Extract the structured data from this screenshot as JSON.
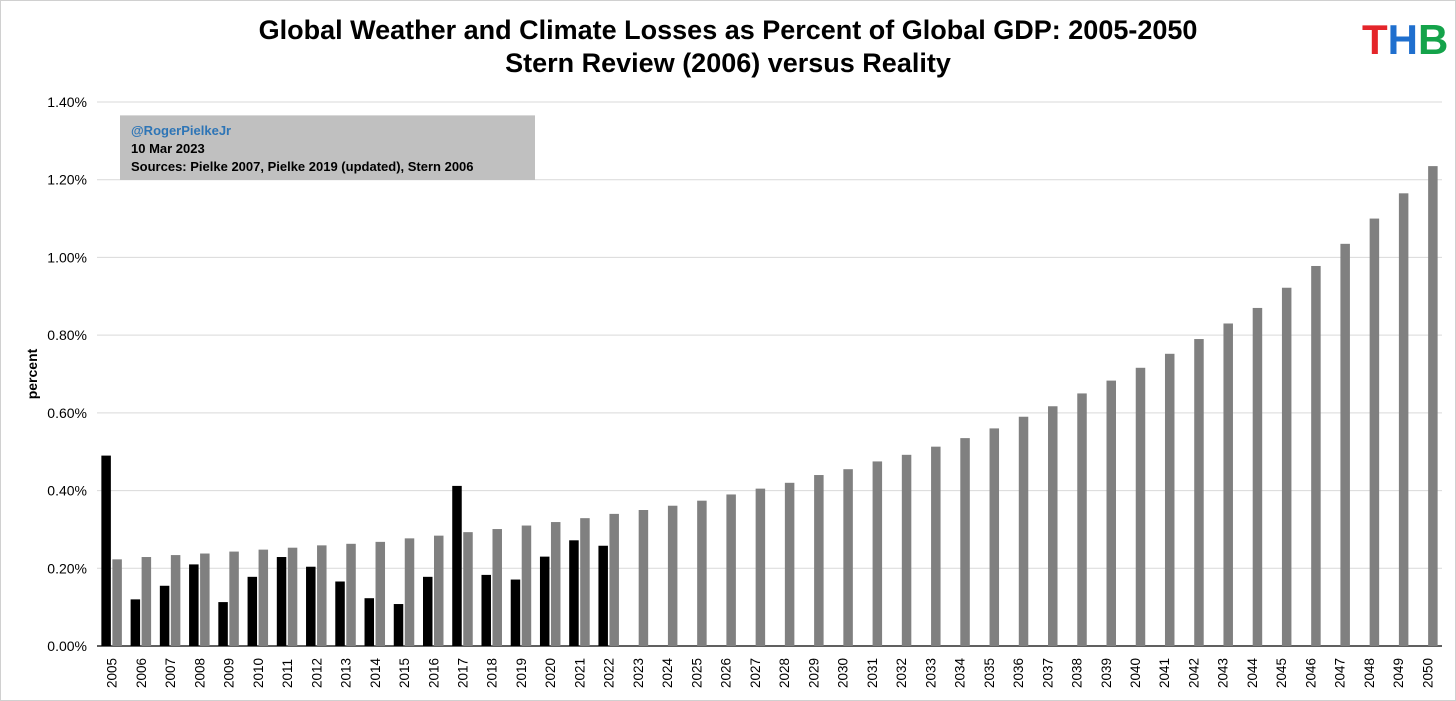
{
  "logo": {
    "letters": [
      {
        "char": "T",
        "color": "#e4252a"
      },
      {
        "char": "H",
        "color": "#1f6fce"
      },
      {
        "char": "B",
        "color": "#14a34a"
      }
    ]
  },
  "infobox": {
    "handle": "@RogerPielkeJr",
    "date": "10 Mar 2023",
    "sources": "Sources: Pielke 2007, Pielke 2019 (updated), Stern 2006"
  },
  "chart_data": {
    "type": "bar",
    "title": "Global Weather and Climate Losses as Percent of Global GDP: 2005-2050",
    "subtitle": "Stern Review (2006) versus Reality",
    "xlabel": "",
    "ylabel": "percent",
    "ylim": [
      0,
      1.4
    ],
    "yticks": [
      "0.00%",
      "0.20%",
      "0.40%",
      "0.60%",
      "0.80%",
      "1.00%",
      "1.20%",
      "1.40%"
    ],
    "grid": true,
    "legend": "none",
    "categories": [
      "2005",
      "2006",
      "2007",
      "2008",
      "2009",
      "2010",
      "2011",
      "2012",
      "2013",
      "2014",
      "2015",
      "2016",
      "2017",
      "2018",
      "2019",
      "2020",
      "2021",
      "2022",
      "2023",
      "2024",
      "2025",
      "2026",
      "2027",
      "2028",
      "2029",
      "2030",
      "2031",
      "2032",
      "2033",
      "2034",
      "2035",
      "2036",
      "2037",
      "2038",
      "2039",
      "2040",
      "2041",
      "2042",
      "2043",
      "2044",
      "2045",
      "2046",
      "2047",
      "2048",
      "2049",
      "2050"
    ],
    "series": [
      {
        "color": "#000000",
        "values": [
          0.49,
          0.12,
          0.155,
          0.21,
          0.113,
          0.178,
          0.229,
          0.204,
          0.166,
          0.123,
          0.108,
          0.178,
          0.412,
          0.183,
          0.171,
          0.23,
          0.272,
          0.258,
          null,
          null,
          null,
          null,
          null,
          null,
          null,
          null,
          null,
          null,
          null,
          null,
          null,
          null,
          null,
          null,
          null,
          null,
          null,
          null,
          null,
          null,
          null,
          null,
          null,
          null,
          null,
          null
        ]
      },
      {
        "color": "#808080",
        "values": [
          0.223,
          0.229,
          0.234,
          0.238,
          0.243,
          0.248,
          0.253,
          0.259,
          0.263,
          0.268,
          0.277,
          0.284,
          0.293,
          0.301,
          0.31,
          0.319,
          0.329,
          0.34,
          0.35,
          0.361,
          0.374,
          0.39,
          0.405,
          0.42,
          0.44,
          0.455,
          0.475,
          0.492,
          0.513,
          0.535,
          0.56,
          0.59,
          0.617,
          0.65,
          0.683,
          0.716,
          0.752,
          0.79,
          0.83,
          0.87,
          0.922,
          0.978,
          1.035,
          1.1,
          1.165,
          1.235
        ]
      }
    ]
  }
}
